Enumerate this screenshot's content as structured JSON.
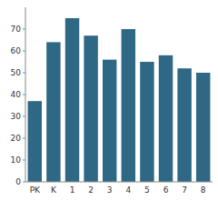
{
  "chart_data": {
    "type": "bar",
    "categories": [
      "PK",
      "K",
      "1",
      "2",
      "3",
      "4",
      "5",
      "6",
      "7",
      "8"
    ],
    "values": [
      37,
      64,
      75,
      67,
      56,
      70,
      55,
      58,
      52,
      50
    ],
    "color": "#2e6885",
    "ylim": [
      0,
      80
    ],
    "yticks": [
      0,
      10,
      20,
      30,
      40,
      50,
      60,
      70
    ]
  }
}
